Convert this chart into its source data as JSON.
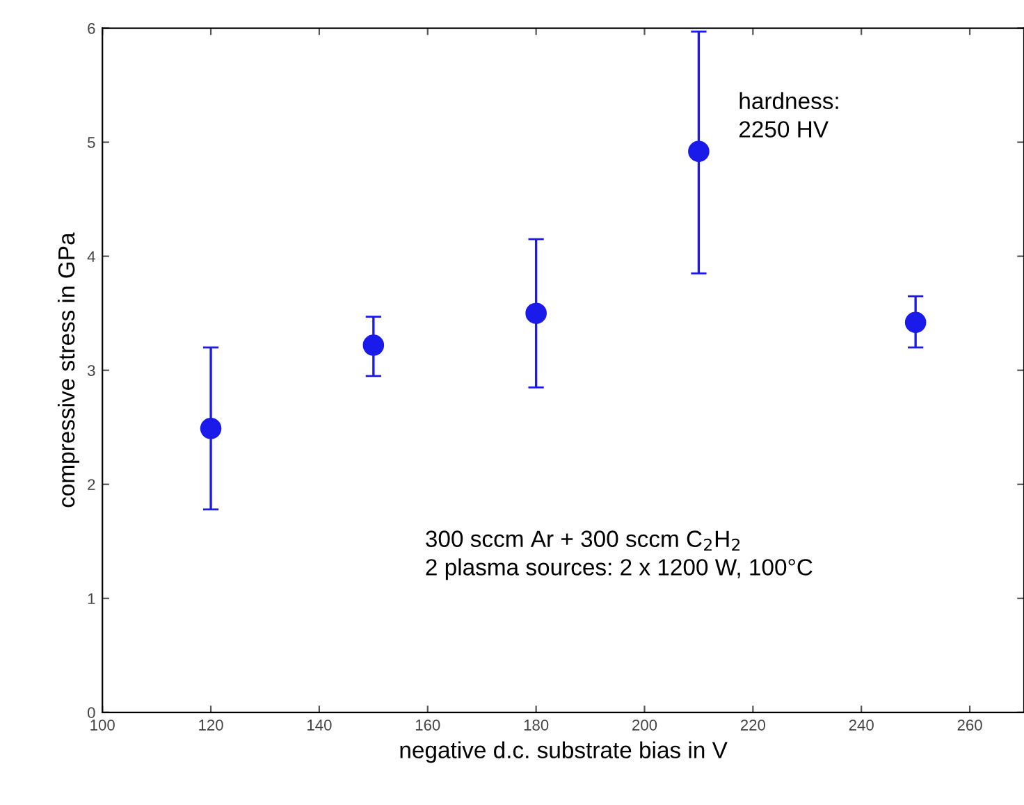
{
  "chart_data": {
    "type": "scatter",
    "xlabel": "negative d.c. substrate bias in V",
    "ylabel": "compressive stress in GPa",
    "x": [
      120,
      150,
      180,
      210,
      250
    ],
    "values": [
      2.49,
      3.22,
      3.5,
      4.92,
      3.42
    ],
    "errors": [
      [
        1.78,
        3.2
      ],
      [
        2.95,
        3.47
      ],
      [
        2.85,
        4.15
      ],
      [
        3.85,
        5.97
      ],
      [
        3.2,
        3.65
      ]
    ],
    "color": "#1a1aeb",
    "marker": "circle",
    "xlim": [
      100,
      270
    ],
    "xticks": [
      100,
      120,
      140,
      160,
      180,
      200,
      220,
      240,
      260
    ],
    "ylim": [
      0,
      6
    ],
    "yticks": [
      0,
      1,
      2,
      3,
      4,
      5,
      6
    ],
    "grid": false,
    "annotations": [
      "hardness:\n2250 HV",
      "300 sccm Ar + 300 sccm C$_{2}$H$_{2}$\n2 plasma sources: 2 x 1200 W, 100°C"
    ]
  }
}
